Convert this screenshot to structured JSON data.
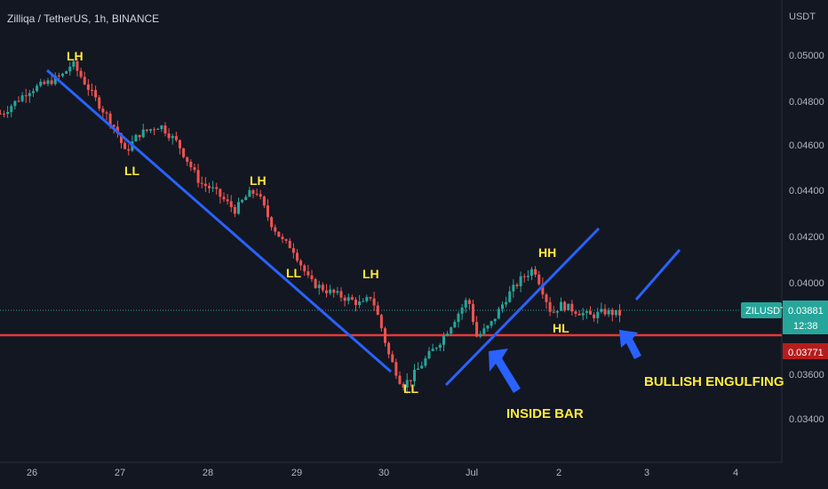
{
  "header": {
    "title": "Zilliqa / TetherUS, 1h, BINANCE"
  },
  "colors": {
    "background": "#131722",
    "up": "#26a69a",
    "down": "#ef5350",
    "trendline": "#2962ff",
    "support": "#e53935",
    "annotation": "#ffeb3b",
    "price_badge": "#26a69a",
    "support_badge": "#b71c1c"
  },
  "price_scale": {
    "currency": "USDT",
    "ticks": [
      "0.05000",
      "0.04800",
      "0.04600",
      "0.04400",
      "0.04200",
      "0.04000",
      "0.03600",
      "0.03400"
    ]
  },
  "time_scale": {
    "ticks": [
      "26",
      "27",
      "28",
      "29",
      "30",
      "Jul",
      "2",
      "3",
      "4"
    ]
  },
  "badges": {
    "symbol": "ZILUSDT",
    "last_price": "0.03881",
    "countdown": "12:38",
    "support_price": "0.03771"
  },
  "annotations": {
    "lh1": "LH",
    "ll1": "LL",
    "lh2": "LH",
    "ll2": "LL",
    "lh3": "LH",
    "ll3": "LL",
    "hh": "HH",
    "hl": "HL",
    "inside_bar": "INSIDE BAR",
    "bullish_engulfing": "BULLISH ENGULFING"
  },
  "chart_data": {
    "type": "line",
    "title": "Zilliqa / TetherUS, 1h, BINANCE",
    "ylabel": "USDT",
    "ylim": [
      0.0327,
      0.0516
    ],
    "x_ticks": [
      "26",
      "27",
      "28",
      "29",
      "30",
      "Jul",
      "2",
      "3",
      "4"
    ],
    "series": [
      {
        "name": "ZILUSDT",
        "x": [
          -0.3,
          0.0,
          0.2,
          0.4,
          0.5,
          0.75,
          1.0,
          1.1,
          1.25,
          1.5,
          1.7,
          1.95,
          2.1,
          2.35,
          2.5,
          2.6,
          2.75,
          2.9,
          3.0,
          3.2,
          3.4,
          3.6,
          3.8,
          3.9,
          4.0,
          4.1,
          4.25,
          4.35,
          4.55,
          4.7,
          5.0,
          5.1,
          5.25,
          5.45,
          5.6,
          5.75,
          5.95,
          6.05,
          6.25,
          6.4,
          6.55,
          6.7
        ],
        "values": [
          0.0475,
          0.0485,
          0.0488,
          0.0492,
          0.0497,
          0.0482,
          0.0468,
          0.0458,
          0.0466,
          0.047,
          0.0462,
          0.0445,
          0.0442,
          0.0433,
          0.044,
          0.0441,
          0.0428,
          0.0419,
          0.0417,
          0.0402,
          0.0398,
          0.0395,
          0.0392,
          0.0396,
          0.0384,
          0.037,
          0.0357,
          0.036,
          0.037,
          0.0377,
          0.0395,
          0.0378,
          0.0383,
          0.0396,
          0.0403,
          0.0408,
          0.0388,
          0.0392,
          0.0389,
          0.0387,
          0.0389,
          0.0388
        ]
      },
      {
        "name": "Support",
        "x": [
          -0.35,
          8.5
        ],
        "values": [
          0.03771,
          0.03771
        ]
      }
    ],
    "reference_lines": {
      "support": 0.03771,
      "last_price": 0.03881
    }
  }
}
